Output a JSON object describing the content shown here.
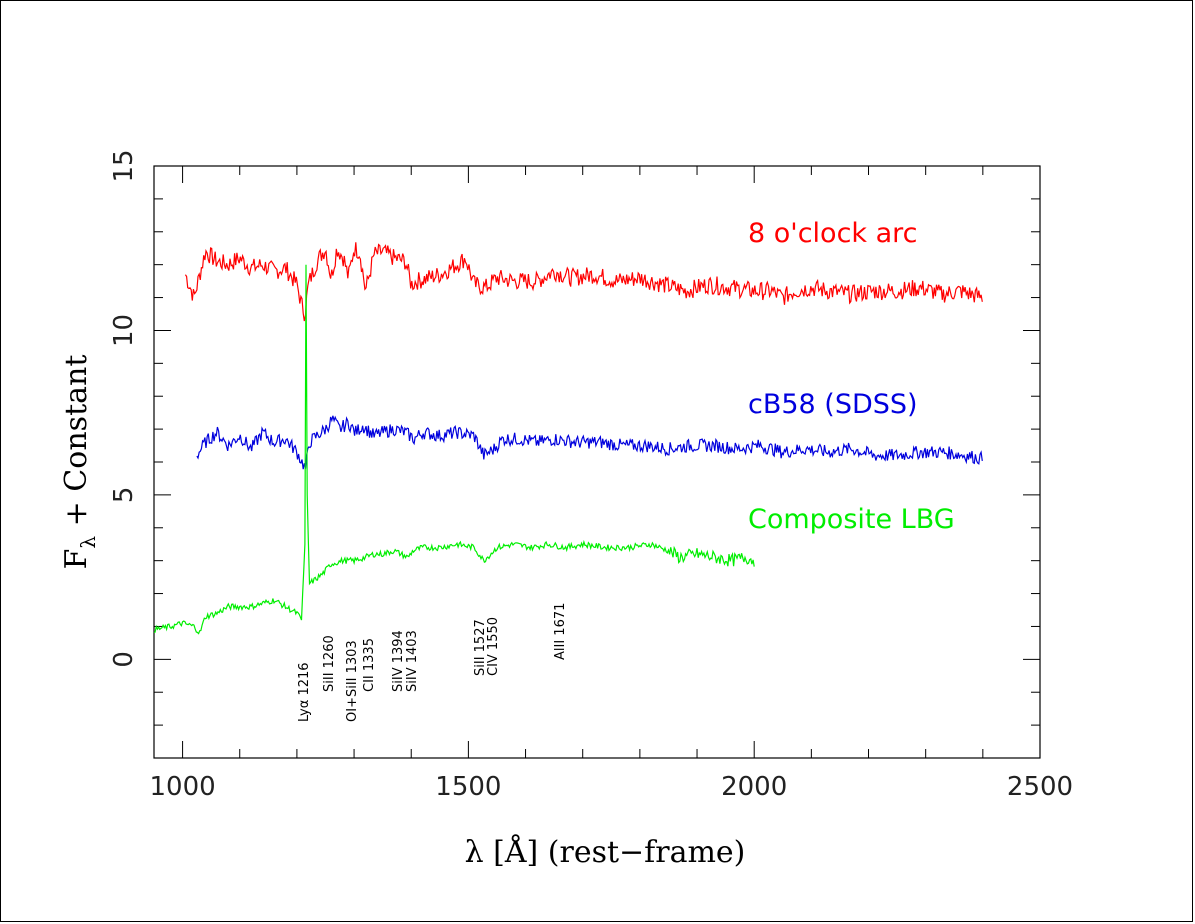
{
  "chart_data": {
    "type": "line",
    "xlabel": "λ [Å] (rest−frame)",
    "ylabel_main": "F",
    "ylabel_sub": "λ",
    "ylabel_rest": " + Constant",
    "xlim": [
      950,
      2500
    ],
    "ylim": [
      -3,
      15
    ],
    "xticks": [
      1000,
      1500,
      2000,
      2500
    ],
    "xtick_labels": [
      "1000",
      "1500",
      "2000",
      "2500"
    ],
    "yticks": [
      0,
      5,
      10,
      15
    ],
    "ytick_labels": [
      "0",
      "5",
      "10",
      "15"
    ],
    "grid": false,
    "series": [
      {
        "name": "8 o'clock arc",
        "color": "#ff0000",
        "x": [
          1005,
          1020,
          1040,
          1060,
          1080,
          1100,
          1120,
          1140,
          1160,
          1180,
          1200,
          1208,
          1214,
          1220,
          1235,
          1250,
          1260,
          1270,
          1282,
          1290,
          1300,
          1310,
          1320,
          1335,
          1350,
          1370,
          1390,
          1400,
          1410,
          1430,
          1450,
          1470,
          1495,
          1510,
          1530,
          1550,
          1580,
          1620,
          1650,
          1680,
          1720,
          1760,
          1800,
          1840,
          1880,
          1920,
          1960,
          2000,
          2030,
          2050,
          2070,
          2100,
          2130,
          2170,
          2210,
          2250,
          2290,
          2330,
          2360,
          2400
        ],
        "y": [
          11.7,
          11.0,
          12.4,
          12.1,
          12.0,
          12.2,
          11.9,
          12.0,
          11.8,
          11.9,
          11.4,
          10.8,
          10.5,
          11.4,
          12.1,
          12.5,
          11.6,
          12.5,
          12.2,
          11.6,
          12.5,
          12.4,
          11.2,
          12.3,
          12.4,
          12.2,
          12.1,
          11.4,
          11.5,
          11.6,
          11.7,
          11.9,
          12.2,
          11.4,
          11.3,
          11.6,
          11.5,
          11.5,
          11.8,
          11.6,
          11.7,
          11.5,
          11.6,
          11.4,
          11.2,
          11.4,
          11.3,
          11.2,
          11.2,
          11.0,
          11.2,
          11.3,
          11.2,
          11.1,
          11.2,
          11.2,
          11.3,
          11.1,
          11.2,
          11.0
        ]
      },
      {
        "name": "cB58 (SDSS)",
        "color": "#0000dd",
        "x": [
          1025,
          1040,
          1060,
          1080,
          1100,
          1120,
          1140,
          1160,
          1180,
          1200,
          1215,
          1222,
          1235,
          1250,
          1262,
          1275,
          1290,
          1302,
          1315,
          1335,
          1350,
          1370,
          1390,
          1405,
          1420,
          1450,
          1480,
          1510,
          1527,
          1545,
          1560,
          1590,
          1620,
          1650,
          1690,
          1730,
          1770,
          1810,
          1850,
          1890,
          1930,
          1970,
          2010,
          2050,
          2090,
          2130,
          2170,
          2210,
          2250,
          2290,
          2330,
          2370,
          2400
        ],
        "y": [
          6.2,
          6.6,
          6.9,
          6.5,
          6.8,
          6.4,
          6.9,
          6.6,
          6.7,
          6.3,
          5.8,
          6.6,
          6.8,
          7.0,
          7.3,
          7.0,
          7.2,
          6.9,
          7.1,
          6.8,
          6.9,
          7.0,
          6.9,
          6.7,
          6.9,
          6.8,
          6.9,
          6.8,
          6.2,
          6.4,
          6.7,
          6.7,
          6.6,
          6.7,
          6.6,
          6.6,
          6.5,
          6.5,
          6.4,
          6.5,
          6.5,
          6.4,
          6.5,
          6.3,
          6.4,
          6.3,
          6.4,
          6.2,
          6.2,
          6.3,
          6.3,
          6.2,
          6.1
        ]
      },
      {
        "name": "Composite LBG",
        "color": "#00ee00",
        "x": [
          950,
          980,
          1000,
          1020,
          1030,
          1040,
          1060,
          1080,
          1100,
          1120,
          1140,
          1160,
          1180,
          1200,
          1208,
          1214,
          1216,
          1218,
          1222,
          1230,
          1245,
          1260,
          1280,
          1300,
          1320,
          1335,
          1350,
          1370,
          1394,
          1403,
          1420,
          1450,
          1480,
          1510,
          1527,
          1550,
          1580,
          1610,
          1640,
          1671,
          1700,
          1740,
          1780,
          1820,
          1850,
          1870,
          1900,
          1930,
          1960,
          1985,
          2000
        ],
        "y": [
          0.9,
          1.0,
          1.1,
          1.0,
          0.8,
          1.3,
          1.4,
          1.6,
          1.6,
          1.6,
          1.7,
          1.8,
          1.6,
          1.4,
          1.2,
          3.5,
          12.0,
          5.0,
          2.3,
          2.4,
          2.6,
          2.9,
          3.0,
          3.0,
          3.1,
          3.2,
          3.2,
          3.3,
          3.1,
          3.3,
          3.4,
          3.4,
          3.5,
          3.4,
          3.0,
          3.4,
          3.5,
          3.4,
          3.5,
          3.4,
          3.5,
          3.4,
          3.4,
          3.5,
          3.3,
          3.1,
          3.2,
          3.1,
          3.0,
          3.1,
          3.0
        ]
      }
    ],
    "annotations": [
      {
        "text": "Lyα 1216",
        "x": 1216
      },
      {
        "text": "SiII 1260",
        "x": 1260
      },
      {
        "text": "OI+SiII 1303",
        "x": 1303
      },
      {
        "text": "CII 1335",
        "x": 1335
      },
      {
        "text": "SiIV 1394",
        "x": 1394
      },
      {
        "text": "SiIV 1403",
        "x": 1403
      },
      {
        "text": "SiII 1527",
        "x": 1527
      },
      {
        "text": "CIV 1550",
        "x": 1550
      },
      {
        "text": "AlII 1671",
        "x": 1671
      }
    ]
  }
}
